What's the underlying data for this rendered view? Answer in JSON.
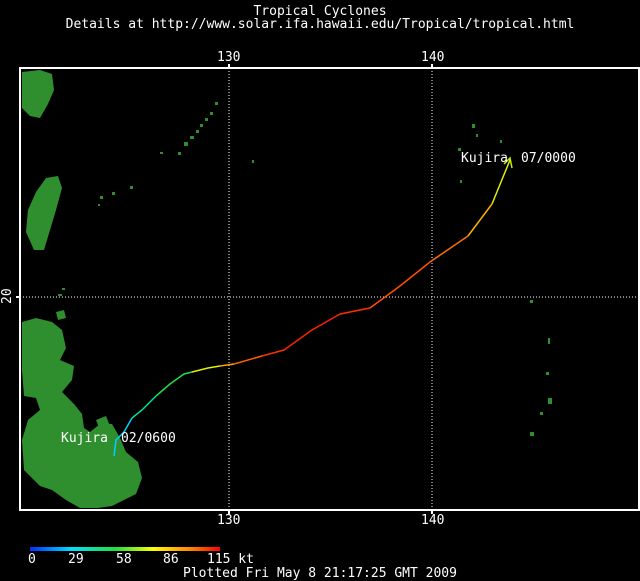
{
  "header": {
    "title": "Tropical Cyclones",
    "subtitle": "Details at http://www.solar.ifa.hawaii.edu/Tropical/tropical.html"
  },
  "map": {
    "lon_ticks_top": [
      "130",
      "140"
    ],
    "lon_ticks_bottom": [
      "130",
      "140"
    ],
    "lat_ticks": [
      "20"
    ],
    "background_color": "#000000",
    "land_color": "#2f8f2f",
    "grid_color": "#ffffff"
  },
  "storm": {
    "name": "Kujira",
    "start_label": "Kujira",
    "start_time": "02/0600",
    "end_label": "Kujira",
    "end_time": "07/0000"
  },
  "intensity_scale": {
    "unit": "kt",
    "ticks": [
      "0",
      "29",
      "58",
      "86",
      "115 kt"
    ],
    "colors": [
      "#0030ff",
      "#00e0ff",
      "#20e040",
      "#ffff00",
      "#ff8000",
      "#ff0000"
    ]
  },
  "footer": {
    "plotted": "Plotted Fri May  8 21:17:25 GMT 2009"
  }
}
